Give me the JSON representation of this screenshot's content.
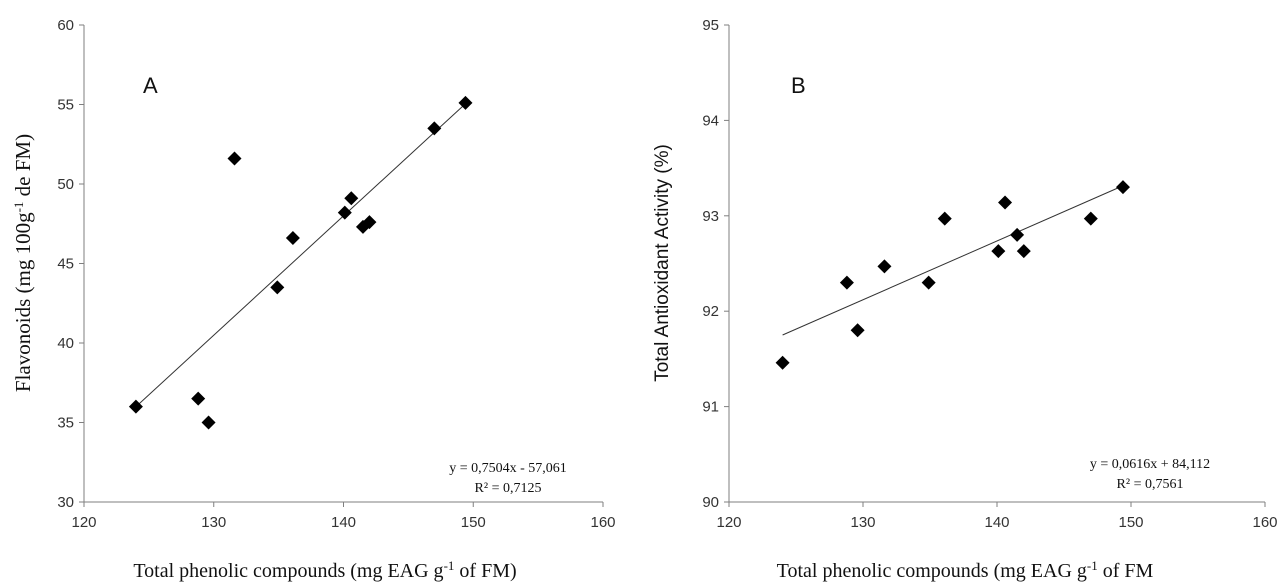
{
  "chart_data": [
    {
      "type": "scatter",
      "panel_label": "A",
      "xlabel": "Total phenolic compounds (mg EAG g",
      "xlabel_sup": "-1",
      "xlabel_tail": " of FM)",
      "ylabel": "Flavonoids (mg 100g",
      "ylabel_sup": "-1",
      "ylabel_tail": " de FM)",
      "xlim": [
        120,
        160
      ],
      "ylim": [
        30,
        60
      ],
      "x_ticks": [
        "120",
        "130",
        "140",
        "150",
        "160"
      ],
      "y_ticks": [
        "30",
        "35",
        "40",
        "45",
        "50",
        "55",
        "60"
      ],
      "points": [
        {
          "x": 124.0,
          "y": 36.0
        },
        {
          "x": 128.8,
          "y": 36.5
        },
        {
          "x": 129.6,
          "y": 35.0
        },
        {
          "x": 131.6,
          "y": 51.6
        },
        {
          "x": 134.9,
          "y": 43.5
        },
        {
          "x": 136.1,
          "y": 46.6
        },
        {
          "x": 140.1,
          "y": 48.2
        },
        {
          "x": 140.6,
          "y": 49.1
        },
        {
          "x": 141.5,
          "y": 47.3
        },
        {
          "x": 142.0,
          "y": 47.6
        },
        {
          "x": 147.0,
          "y": 53.5
        },
        {
          "x": 149.4,
          "y": 55.1
        }
      ],
      "trendline": {
        "slope": 0.7504,
        "intercept": -57.061,
        "x_range": [
          124.0,
          149.4
        ]
      },
      "equation": "y = 0,7504x - 57,061",
      "r2_label": "R² = 0,7125"
    },
    {
      "type": "scatter",
      "panel_label": "B",
      "xlabel": "Total phenolic compounds (mg EAG g",
      "xlabel_sup": "-1",
      "xlabel_tail": " of FM",
      "ylabel": "Total Antioxidant Activity (%)",
      "xlim": [
        120,
        160
      ],
      "ylim": [
        90,
        95
      ],
      "x_ticks": [
        "120",
        "130",
        "140",
        "150",
        "160"
      ],
      "y_ticks": [
        "90",
        "91",
        "92",
        "93",
        "94",
        "95"
      ],
      "points": [
        {
          "x": 124.0,
          "y": 91.46
        },
        {
          "x": 128.8,
          "y": 92.3
        },
        {
          "x": 129.6,
          "y": 91.8
        },
        {
          "x": 131.6,
          "y": 92.47
        },
        {
          "x": 134.9,
          "y": 92.3
        },
        {
          "x": 136.1,
          "y": 92.97
        },
        {
          "x": 140.1,
          "y": 92.63
        },
        {
          "x": 140.6,
          "y": 93.14
        },
        {
          "x": 141.5,
          "y": 92.8
        },
        {
          "x": 142.0,
          "y": 92.63
        },
        {
          "x": 147.0,
          "y": 92.97
        },
        {
          "x": 149.4,
          "y": 93.3
        }
      ],
      "trendline": {
        "slope": 0.0616,
        "intercept": 84.112,
        "x_range": [
          124.0,
          149.4
        ]
      },
      "equation": "y = 0,0616x + 84,112",
      "r2_label": "R² = 0,7561"
    }
  ]
}
